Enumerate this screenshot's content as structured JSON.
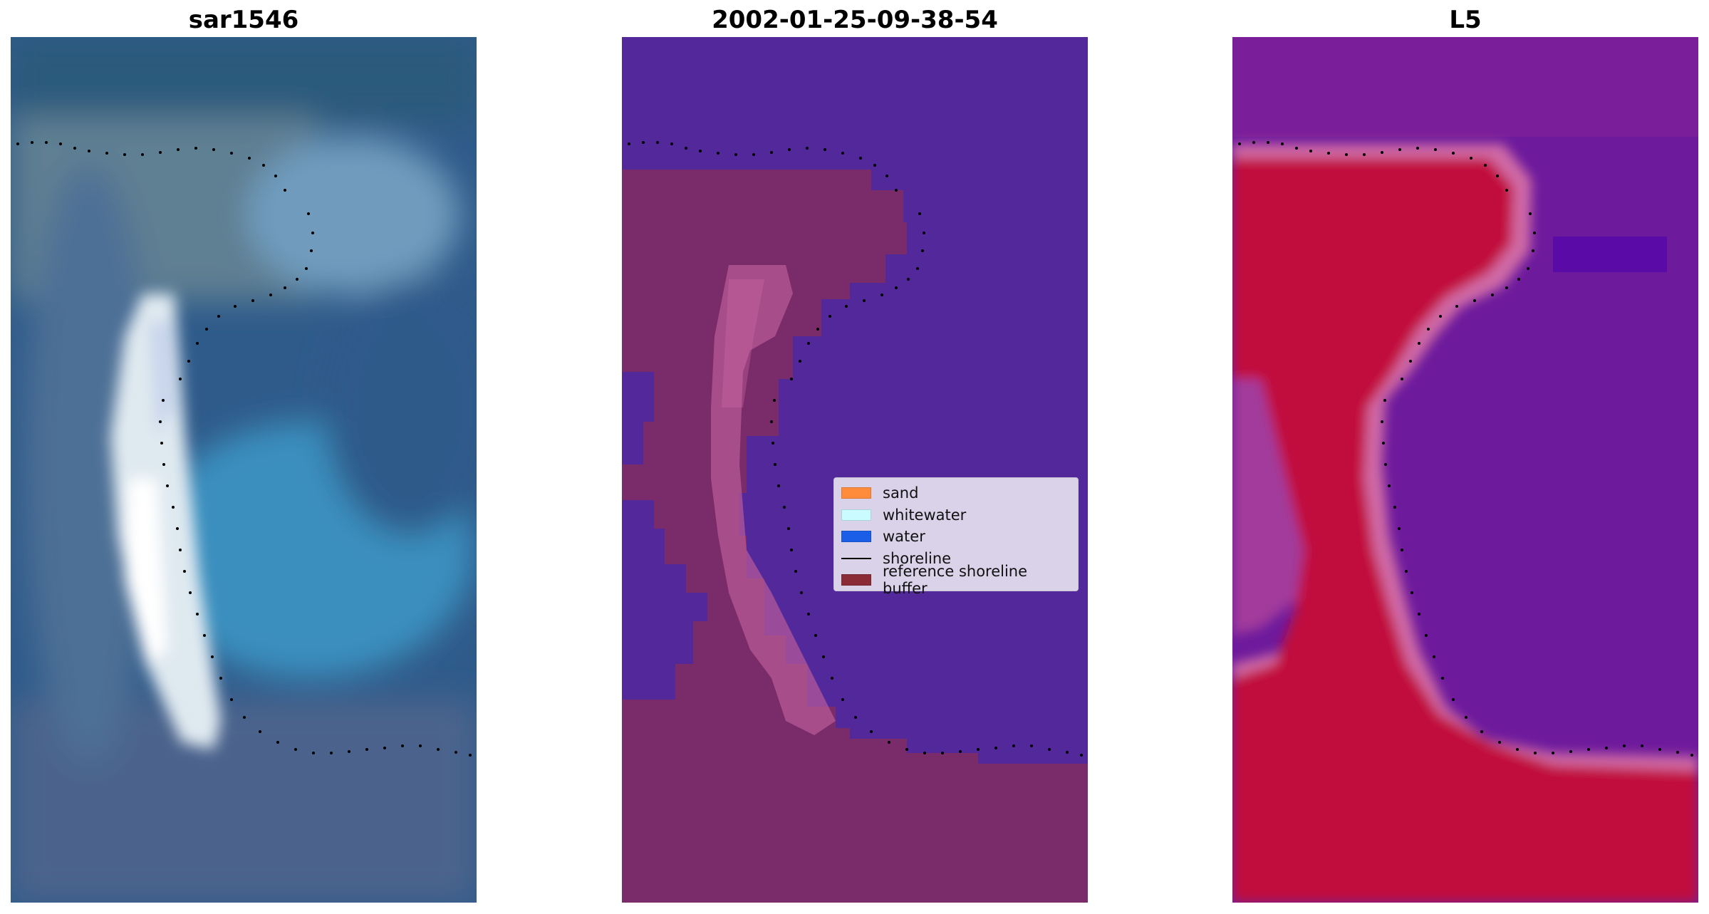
{
  "panels": [
    {
      "title": "sar1546"
    },
    {
      "title": "2002-01-25-09-38-54"
    },
    {
      "title": "L5"
    }
  ],
  "legend": {
    "items": [
      {
        "label": "sand",
        "type": "patch",
        "color": "#ff8c3a"
      },
      {
        "label": "whitewater",
        "type": "patch",
        "color": "#c9fbff"
      },
      {
        "label": "water",
        "type": "patch",
        "color": "#1a5ee8"
      },
      {
        "label": "shoreline",
        "type": "line",
        "color": "#000000"
      },
      {
        "label": "reference shoreline buffer",
        "type": "patch",
        "color": "#8b2b36"
      }
    ]
  },
  "colors": {
    "rgb_water": "#2f5b8a",
    "rgb_whitewater": "#f2f7f4",
    "class_water": "#53289a",
    "class_buffer": "#7a2b6a",
    "class_buffer_highlight": "#c0609a",
    "ndwi_land": "#c1083c",
    "ndwi_water": "#6d1a9c",
    "ndwi_transition": "#d06aa6"
  }
}
